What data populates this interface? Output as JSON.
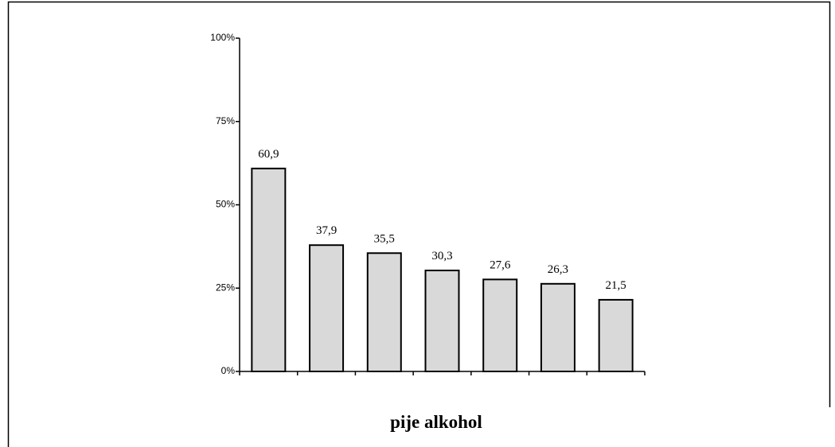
{
  "chart_data": {
    "type": "bar",
    "xlabel": "pije alkohol",
    "categories": [
      null,
      null,
      null,
      null,
      null,
      null,
      null
    ],
    "values": [
      60.9,
      37.9,
      35.5,
      30.3,
      27.6,
      26.3,
      21.5
    ],
    "value_labels": [
      "60,9",
      "37,9",
      "35,5",
      "30,3",
      "27,6",
      "26,3",
      "21,5"
    ],
    "color": "#d9d9d9",
    "ylim": [
      0,
      100
    ],
    "yticks": [
      {
        "value": 0,
        "label": "0%"
      },
      {
        "value": 25,
        "label": "25%"
      },
      {
        "value": 50,
        "label": "50%"
      },
      {
        "value": 75,
        "label": "75%"
      },
      {
        "value": 100,
        "label": "100%"
      }
    ]
  }
}
